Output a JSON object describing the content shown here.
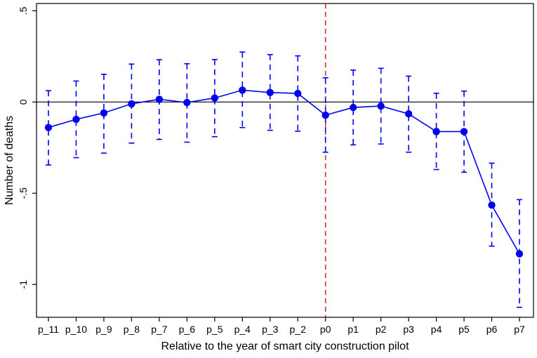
{
  "chart_data": {
    "type": "scatter",
    "title": "",
    "xlabel": "Relative to the year of smart city construction pilot",
    "ylabel": "Number of deaths",
    "categories": [
      "p_11",
      "p_10",
      "p_9",
      "p_8",
      "p_7",
      "p_6",
      "p_5",
      "p_4",
      "p_3",
      "p_2",
      "p0",
      "p1",
      "p2",
      "p3",
      "p4",
      "p5",
      "p6",
      "p7"
    ],
    "y_ticks": [
      ".5",
      "0",
      "-.5",
      "-1"
    ],
    "y_tick_values": [
      0.5,
      0,
      -0.5,
      -1
    ],
    "ylim": [
      -1.18,
      0.54
    ],
    "series": [
      {
        "values": [
          -0.14,
          -0.095,
          -0.06,
          -0.01,
          0.015,
          -0.003,
          0.022,
          0.065,
          0.052,
          0.047,
          -0.072,
          -0.03,
          -0.022,
          -0.065,
          -0.162,
          -0.162,
          -0.565,
          -0.832
        ],
        "ci_low": [
          -0.345,
          -0.305,
          -0.28,
          -0.225,
          -0.205,
          -0.22,
          -0.19,
          -0.14,
          -0.155,
          -0.16,
          -0.275,
          -0.235,
          -0.23,
          -0.275,
          -0.37,
          -0.385,
          -0.79,
          -1.125
        ],
        "ci_high": [
          0.062,
          0.115,
          0.152,
          0.208,
          0.232,
          0.21,
          0.233,
          0.274,
          0.26,
          0.253,
          0.133,
          0.175,
          0.185,
          0.142,
          0.048,
          0.06,
          -0.335,
          -0.535
        ]
      }
    ],
    "reference_line_y": 0,
    "vertical_reference_at": "p0",
    "colors": {
      "series": "#0000ee",
      "reference_vertical": "#c0392b",
      "zero_line": "#000000"
    }
  }
}
